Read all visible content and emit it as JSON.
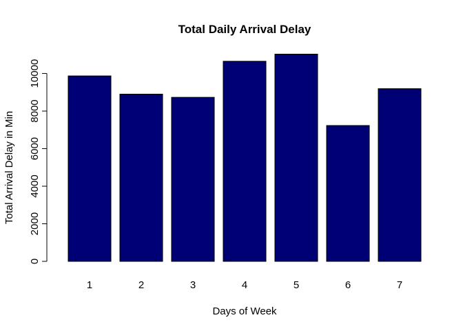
{
  "chart_data": {
    "type": "bar",
    "title": "Total Daily Arrival Delay",
    "xlabel": "Days of Week",
    "ylabel": "Total Arrival Delay in Min",
    "categories": [
      "1",
      "2",
      "3",
      "4",
      "5",
      "6",
      "7"
    ],
    "values": [
      9870,
      8900,
      8730,
      10650,
      11030,
      7230,
      9190
    ],
    "yticks": [
      0,
      2000,
      4000,
      6000,
      8000,
      10000
    ],
    "ylim": [
      0,
      11030
    ],
    "grid": false,
    "legend": "none",
    "colors": {
      "bar_fill": "#000075",
      "bar_stroke": "#000000",
      "axis": "#000000"
    }
  }
}
